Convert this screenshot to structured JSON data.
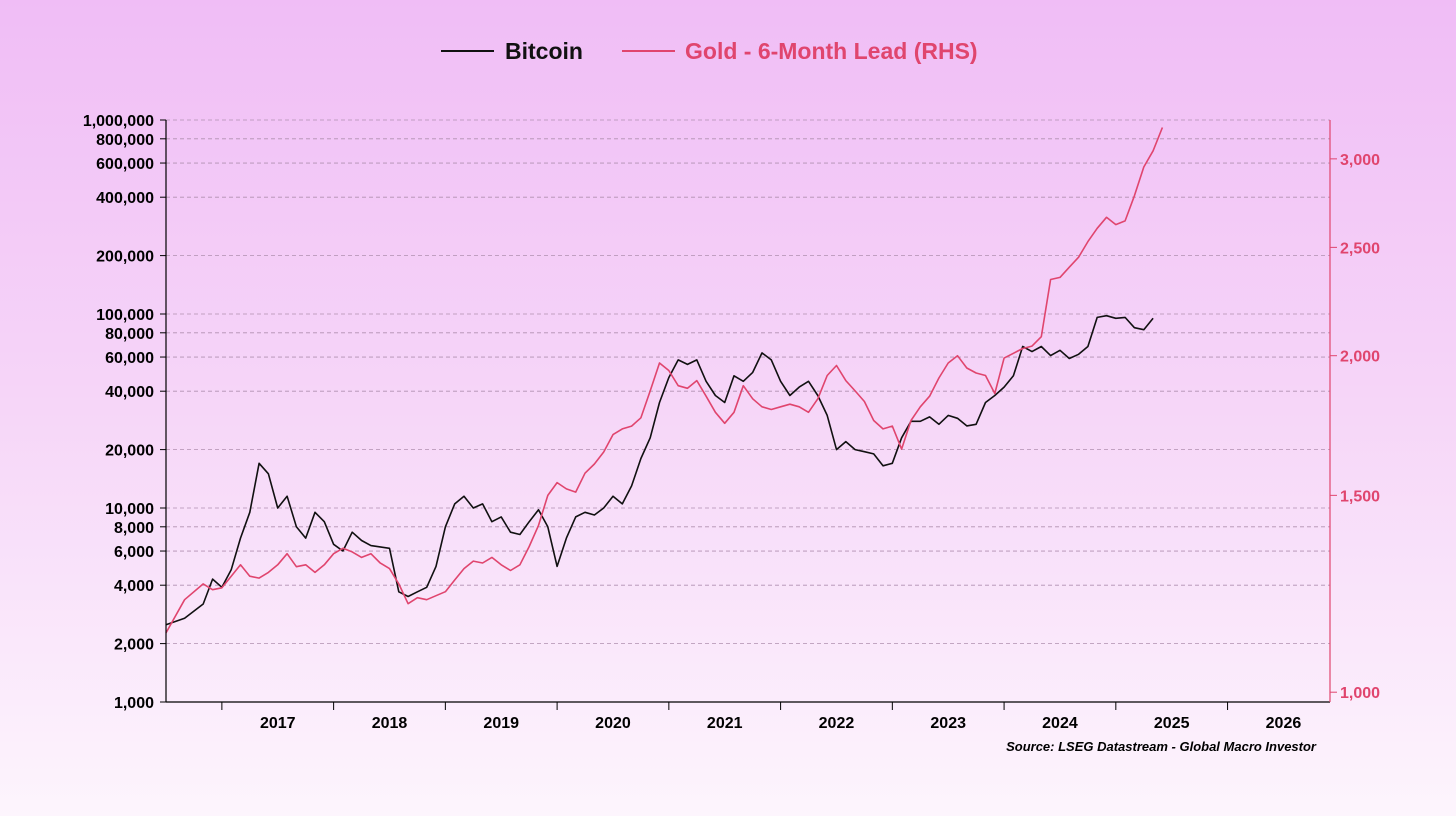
{
  "chart_data": {
    "type": "line",
    "title": "",
    "legend_position": "top-center",
    "grid": true,
    "colors": {
      "bitcoin": "#111111",
      "gold": "#e0456e",
      "grid": "#b090b0"
    },
    "x_axis": {
      "labels": [
        "2017",
        "2018",
        "2019",
        "2020",
        "2021",
        "2022",
        "2023",
        "2024",
        "2025",
        "2026"
      ],
      "range": [
        "2016-07",
        "2026-12"
      ]
    },
    "y_left": {
      "scale": "log",
      "range": [
        1000,
        1000000
      ],
      "ticks": [
        1000,
        2000,
        4000,
        6000,
        8000,
        10000,
        20000,
        40000,
        60000,
        80000,
        100000,
        200000,
        400000,
        600000,
        800000,
        1000000
      ],
      "tick_labels": [
        "1,000",
        "2,000",
        "4,000",
        "6,000",
        "8,000",
        "10,000",
        "20,000",
        "40,000",
        "60,000",
        "80,000",
        "100,000",
        "200,000",
        "400,000",
        "600,000",
        "800,000",
        "1,000,000"
      ]
    },
    "y_right": {
      "scale": "log",
      "range": [
        980,
        3250
      ],
      "ticks": [
        1000,
        1500,
        2000,
        2500,
        3000
      ],
      "tick_labels": [
        "1,000",
        "1,500",
        "2,000",
        "2,500",
        "3,000"
      ]
    },
    "series": [
      {
        "name": "Bitcoin",
        "axis": "left",
        "points": [
          [
            "2016-07",
            2500
          ],
          [
            "2016-09",
            2700
          ],
          [
            "2016-11",
            3200
          ],
          [
            "2016-12",
            4300
          ],
          [
            "2017-01",
            3900
          ],
          [
            "2017-02",
            4800
          ],
          [
            "2017-03",
            7000
          ],
          [
            "2017-04",
            9500
          ],
          [
            "2017-05",
            17000
          ],
          [
            "2017-06",
            15000
          ],
          [
            "2017-07",
            10000
          ],
          [
            "2017-08",
            11500
          ],
          [
            "2017-09",
            8000
          ],
          [
            "2017-10",
            7000
          ],
          [
            "2017-11",
            9500
          ],
          [
            "2017-12",
            8500
          ],
          [
            "2018-01",
            6500
          ],
          [
            "2018-02",
            6000
          ],
          [
            "2018-03",
            7500
          ],
          [
            "2018-04",
            6800
          ],
          [
            "2018-05",
            6400
          ],
          [
            "2018-06",
            6300
          ],
          [
            "2018-07",
            6200
          ],
          [
            "2018-08",
            3700
          ],
          [
            "2018-09",
            3500
          ],
          [
            "2018-10",
            3700
          ],
          [
            "2018-11",
            3900
          ],
          [
            "2018-12",
            5000
          ],
          [
            "2019-01",
            8000
          ],
          [
            "2019-02",
            10500
          ],
          [
            "2019-03",
            11500
          ],
          [
            "2019-04",
            10000
          ],
          [
            "2019-05",
            10500
          ],
          [
            "2019-06",
            8500
          ],
          [
            "2019-07",
            9000
          ],
          [
            "2019-08",
            7500
          ],
          [
            "2019-09",
            7300
          ],
          [
            "2019-10",
            8500
          ],
          [
            "2019-11",
            9800
          ],
          [
            "2019-12",
            8000
          ],
          [
            "2020-01",
            5000
          ],
          [
            "2020-02",
            7000
          ],
          [
            "2020-03",
            9000
          ],
          [
            "2020-04",
            9500
          ],
          [
            "2020-05",
            9200
          ],
          [
            "2020-06",
            10000
          ],
          [
            "2020-07",
            11500
          ],
          [
            "2020-08",
            10500
          ],
          [
            "2020-09",
            13000
          ],
          [
            "2020-10",
            18000
          ],
          [
            "2020-11",
            23000
          ],
          [
            "2020-12",
            35000
          ],
          [
            "2021-01",
            47000
          ],
          [
            "2021-02",
            58000
          ],
          [
            "2021-03",
            55000
          ],
          [
            "2021-04",
            58000
          ],
          [
            "2021-05",
            45000
          ],
          [
            "2021-06",
            38000
          ],
          [
            "2021-07",
            35000
          ],
          [
            "2021-08",
            48000
          ],
          [
            "2021-09",
            45000
          ],
          [
            "2021-10",
            50000
          ],
          [
            "2021-11",
            63000
          ],
          [
            "2021-12",
            58000
          ],
          [
            "2022-01",
            45000
          ],
          [
            "2022-02",
            38000
          ],
          [
            "2022-03",
            42000
          ],
          [
            "2022-04",
            45000
          ],
          [
            "2022-05",
            38000
          ],
          [
            "2022-06",
            30000
          ],
          [
            "2022-07",
            20000
          ],
          [
            "2022-08",
            22000
          ],
          [
            "2022-09",
            20000
          ],
          [
            "2022-10",
            19500
          ],
          [
            "2022-11",
            19000
          ],
          [
            "2022-12",
            16500
          ],
          [
            "2023-01",
            17000
          ],
          [
            "2023-02",
            23000
          ],
          [
            "2023-03",
            28000
          ],
          [
            "2023-04",
            28000
          ],
          [
            "2023-05",
            29500
          ],
          [
            "2023-06",
            27000
          ],
          [
            "2023-07",
            30000
          ],
          [
            "2023-08",
            29000
          ],
          [
            "2023-09",
            26500
          ],
          [
            "2023-10",
            27000
          ],
          [
            "2023-11",
            35000
          ],
          [
            "2023-12",
            38000
          ],
          [
            "2024-01",
            42000
          ],
          [
            "2024-02",
            48000
          ],
          [
            "2024-03",
            68000
          ],
          [
            "2024-04",
            64000
          ],
          [
            "2024-05",
            68000
          ],
          [
            "2024-06",
            61000
          ],
          [
            "2024-07",
            65000
          ],
          [
            "2024-08",
            59000
          ],
          [
            "2024-09",
            62000
          ],
          [
            "2024-10",
            68000
          ],
          [
            "2024-11",
            96000
          ],
          [
            "2024-12",
            98000
          ],
          [
            "2025-01",
            95000
          ],
          [
            "2025-02",
            96000
          ],
          [
            "2025-03",
            85000
          ],
          [
            "2025-04",
            83000
          ],
          [
            "2025-05",
            95000
          ]
        ]
      },
      {
        "name": "Gold - 6-Month Lead (RHS)",
        "axis": "right",
        "points": [
          [
            "2016-07",
            1130
          ],
          [
            "2016-09",
            1210
          ],
          [
            "2016-11",
            1250
          ],
          [
            "2016-12",
            1235
          ],
          [
            "2017-01",
            1240
          ],
          [
            "2017-02",
            1270
          ],
          [
            "2017-03",
            1300
          ],
          [
            "2017-04",
            1270
          ],
          [
            "2017-05",
            1265
          ],
          [
            "2017-06",
            1280
          ],
          [
            "2017-07",
            1300
          ],
          [
            "2017-08",
            1330
          ],
          [
            "2017-09",
            1295
          ],
          [
            "2017-10",
            1300
          ],
          [
            "2017-11",
            1280
          ],
          [
            "2017-12",
            1300
          ],
          [
            "2018-01",
            1330
          ],
          [
            "2018-02",
            1345
          ],
          [
            "2018-03",
            1335
          ],
          [
            "2018-04",
            1320
          ],
          [
            "2018-05",
            1330
          ],
          [
            "2018-06",
            1305
          ],
          [
            "2018-07",
            1290
          ],
          [
            "2018-08",
            1250
          ],
          [
            "2018-09",
            1200
          ],
          [
            "2018-10",
            1215
          ],
          [
            "2018-11",
            1210
          ],
          [
            "2018-12",
            1220
          ],
          [
            "2019-01",
            1230
          ],
          [
            "2019-02",
            1260
          ],
          [
            "2019-03",
            1290
          ],
          [
            "2019-04",
            1310
          ],
          [
            "2019-05",
            1305
          ],
          [
            "2019-06",
            1320
          ],
          [
            "2019-07",
            1300
          ],
          [
            "2019-08",
            1285
          ],
          [
            "2019-09",
            1300
          ],
          [
            "2019-10",
            1350
          ],
          [
            "2019-11",
            1410
          ],
          [
            "2019-12",
            1500
          ],
          [
            "2020-01",
            1540
          ],
          [
            "2020-02",
            1520
          ],
          [
            "2020-03",
            1510
          ],
          [
            "2020-04",
            1570
          ],
          [
            "2020-05",
            1600
          ],
          [
            "2020-06",
            1640
          ],
          [
            "2020-07",
            1700
          ],
          [
            "2020-08",
            1720
          ],
          [
            "2020-09",
            1730
          ],
          [
            "2020-10",
            1760
          ],
          [
            "2020-11",
            1860
          ],
          [
            "2020-12",
            1970
          ],
          [
            "2021-01",
            1940
          ],
          [
            "2021-02",
            1880
          ],
          [
            "2021-03",
            1870
          ],
          [
            "2021-04",
            1900
          ],
          [
            "2021-05",
            1840
          ],
          [
            "2021-06",
            1780
          ],
          [
            "2021-07",
            1740
          ],
          [
            "2021-08",
            1780
          ],
          [
            "2021-09",
            1880
          ],
          [
            "2021-10",
            1830
          ],
          [
            "2021-11",
            1800
          ],
          [
            "2021-12",
            1790
          ],
          [
            "2022-01",
            1800
          ],
          [
            "2022-02",
            1810
          ],
          [
            "2022-03",
            1800
          ],
          [
            "2022-04",
            1780
          ],
          [
            "2022-05",
            1830
          ],
          [
            "2022-06",
            1920
          ],
          [
            "2022-07",
            1960
          ],
          [
            "2022-08",
            1900
          ],
          [
            "2022-09",
            1860
          ],
          [
            "2022-10",
            1820
          ],
          [
            "2022-11",
            1750
          ],
          [
            "2022-12",
            1720
          ],
          [
            "2023-01",
            1730
          ],
          [
            "2023-02",
            1650
          ],
          [
            "2023-03",
            1750
          ],
          [
            "2023-04",
            1800
          ],
          [
            "2023-05",
            1840
          ],
          [
            "2023-06",
            1910
          ],
          [
            "2023-07",
            1970
          ],
          [
            "2023-08",
            2000
          ],
          [
            "2023-09",
            1950
          ],
          [
            "2023-10",
            1930
          ],
          [
            "2023-11",
            1920
          ],
          [
            "2023-12",
            1850
          ],
          [
            "2024-01",
            1990
          ],
          [
            "2024-02",
            2010
          ],
          [
            "2024-03",
            2030
          ],
          [
            "2024-04",
            2040
          ],
          [
            "2024-05",
            2080
          ],
          [
            "2024-06",
            2340
          ],
          [
            "2024-07",
            2350
          ],
          [
            "2024-08",
            2400
          ],
          [
            "2024-09",
            2450
          ],
          [
            "2024-10",
            2530
          ],
          [
            "2024-11",
            2600
          ],
          [
            "2024-12",
            2660
          ],
          [
            "2025-01",
            2620
          ],
          [
            "2025-02",
            2640
          ],
          [
            "2025-03",
            2780
          ],
          [
            "2025-04",
            2950
          ],
          [
            "2025-05",
            3050
          ],
          [
            "2025-06",
            3200
          ]
        ]
      }
    ],
    "source": "Source: LSEG Datastream - Global Macro Investor"
  }
}
